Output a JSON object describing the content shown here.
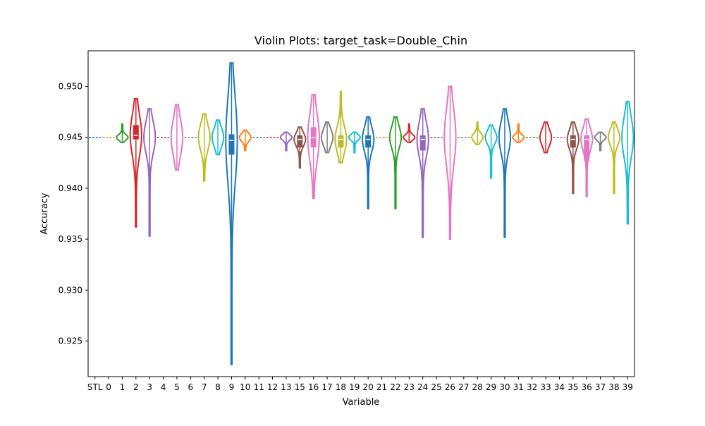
{
  "chart_data": {
    "type": "violin",
    "title": "Violin Plots: target_task=Double_Chin",
    "xlabel": "Variable",
    "ylabel": "Accuracy",
    "ylim": [
      0.9215,
      0.9535
    ],
    "yticks": [
      0.925,
      0.93,
      0.935,
      0.94,
      0.945,
      0.95
    ],
    "ytick_labels": [
      "0.925",
      "0.930",
      "0.935",
      "0.940",
      "0.945",
      "0.950"
    ],
    "categories": [
      "STL",
      "0",
      "1",
      "2",
      "3",
      "4",
      "5",
      "6",
      "7",
      "8",
      "9",
      "10",
      "11",
      "12",
      "13",
      "15",
      "16",
      "17",
      "18",
      "19",
      "20",
      "21",
      "22",
      "23",
      "24",
      "25",
      "26",
      "27",
      "28",
      "29",
      "30",
      "31",
      "32",
      "33",
      "34",
      "35",
      "36",
      "37",
      "38",
      "39"
    ],
    "colors": [
      "#1f77b4",
      "#ff7f0e",
      "#2ca02c",
      "#d62728",
      "#9467bd",
      "#8c564b",
      "#e377c2",
      "#7f7f7f",
      "#bcbd22",
      "#17becf"
    ],
    "violins": [
      {
        "min": 0.945,
        "max": 0.945,
        "q1": 0.945,
        "q3": 0.945,
        "median": 0.945
      },
      {
        "min": 0.945,
        "max": 0.945,
        "q1": 0.945,
        "q3": 0.945,
        "median": 0.945
      },
      {
        "min": 0.9445,
        "max": 0.9463,
        "q1": 0.945,
        "q3": 0.945,
        "median": 0.945
      },
      {
        "min": 0.9362,
        "max": 0.9488,
        "q1": 0.9448,
        "q3": 0.9462,
        "median": 0.9452
      },
      {
        "min": 0.9353,
        "max": 0.9478,
        "q1": 0.945,
        "q3": 0.945,
        "median": 0.945
      },
      {
        "min": 0.945,
        "max": 0.945,
        "q1": 0.945,
        "q3": 0.945,
        "median": 0.945
      },
      {
        "min": 0.9418,
        "max": 0.9482,
        "q1": 0.945,
        "q3": 0.945,
        "median": 0.945
      },
      {
        "min": 0.945,
        "max": 0.945,
        "q1": 0.945,
        "q3": 0.945,
        "median": 0.945
      },
      {
        "min": 0.9407,
        "max": 0.9473,
        "q1": 0.945,
        "q3": 0.945,
        "median": 0.945
      },
      {
        "min": 0.9433,
        "max": 0.9467,
        "q1": 0.945,
        "q3": 0.945,
        "median": 0.945
      },
      {
        "min": 0.9227,
        "max": 0.9523,
        "q1": 0.9433,
        "q3": 0.9453,
        "median": 0.9447
      },
      {
        "min": 0.9437,
        "max": 0.9457,
        "q1": 0.945,
        "q3": 0.945,
        "median": 0.945
      },
      {
        "min": 0.945,
        "max": 0.945,
        "q1": 0.945,
        "q3": 0.945,
        "median": 0.945
      },
      {
        "min": 0.945,
        "max": 0.945,
        "q1": 0.945,
        "q3": 0.945,
        "median": 0.945
      },
      {
        "min": 0.9437,
        "max": 0.9455,
        "q1": 0.945,
        "q3": 0.945,
        "median": 0.945
      },
      {
        "min": 0.942,
        "max": 0.946,
        "q1": 0.944,
        "q3": 0.9452,
        "median": 0.9448
      },
      {
        "min": 0.939,
        "max": 0.9492,
        "q1": 0.944,
        "q3": 0.946,
        "median": 0.945
      },
      {
        "min": 0.9435,
        "max": 0.9465,
        "q1": 0.945,
        "q3": 0.945,
        "median": 0.945
      },
      {
        "min": 0.9425,
        "max": 0.9495,
        "q1": 0.944,
        "q3": 0.9452,
        "median": 0.9448
      },
      {
        "min": 0.9435,
        "max": 0.9455,
        "q1": 0.945,
        "q3": 0.945,
        "median": 0.945
      },
      {
        "min": 0.938,
        "max": 0.947,
        "q1": 0.944,
        "q3": 0.9452,
        "median": 0.9448
      },
      {
        "min": 0.945,
        "max": 0.945,
        "q1": 0.945,
        "q3": 0.945,
        "median": 0.945
      },
      {
        "min": 0.938,
        "max": 0.947,
        "q1": 0.945,
        "q3": 0.945,
        "median": 0.945
      },
      {
        "min": 0.9445,
        "max": 0.9463,
        "q1": 0.945,
        "q3": 0.945,
        "median": 0.945
      },
      {
        "min": 0.9352,
        "max": 0.9478,
        "q1": 0.9437,
        "q3": 0.9452,
        "median": 0.9448
      },
      {
        "min": 0.945,
        "max": 0.945,
        "q1": 0.945,
        "q3": 0.945,
        "median": 0.945
      },
      {
        "min": 0.935,
        "max": 0.95,
        "q1": 0.945,
        "q3": 0.945,
        "median": 0.945
      },
      {
        "min": 0.945,
        "max": 0.945,
        "q1": 0.945,
        "q3": 0.945,
        "median": 0.945
      },
      {
        "min": 0.9443,
        "max": 0.9465,
        "q1": 0.945,
        "q3": 0.945,
        "median": 0.945
      },
      {
        "min": 0.941,
        "max": 0.9462,
        "q1": 0.945,
        "q3": 0.945,
        "median": 0.945
      },
      {
        "min": 0.9352,
        "max": 0.9478,
        "q1": 0.945,
        "q3": 0.945,
        "median": 0.945
      },
      {
        "min": 0.9445,
        "max": 0.9463,
        "q1": 0.945,
        "q3": 0.945,
        "median": 0.945
      },
      {
        "min": 0.945,
        "max": 0.945,
        "q1": 0.945,
        "q3": 0.945,
        "median": 0.945
      },
      {
        "min": 0.9435,
        "max": 0.9465,
        "q1": 0.945,
        "q3": 0.945,
        "median": 0.945
      },
      {
        "min": 0.945,
        "max": 0.945,
        "q1": 0.945,
        "q3": 0.945,
        "median": 0.945
      },
      {
        "min": 0.9395,
        "max": 0.9465,
        "q1": 0.944,
        "q3": 0.9452,
        "median": 0.9448
      },
      {
        "min": 0.9392,
        "max": 0.9468,
        "q1": 0.9427,
        "q3": 0.9452,
        "median": 0.9448
      },
      {
        "min": 0.9437,
        "max": 0.9455,
        "q1": 0.945,
        "q3": 0.945,
        "median": 0.945
      },
      {
        "min": 0.9395,
        "max": 0.9465,
        "q1": 0.945,
        "q3": 0.945,
        "median": 0.945
      },
      {
        "min": 0.9365,
        "max": 0.9485,
        "q1": 0.945,
        "q3": 0.945,
        "median": 0.945
      }
    ]
  }
}
